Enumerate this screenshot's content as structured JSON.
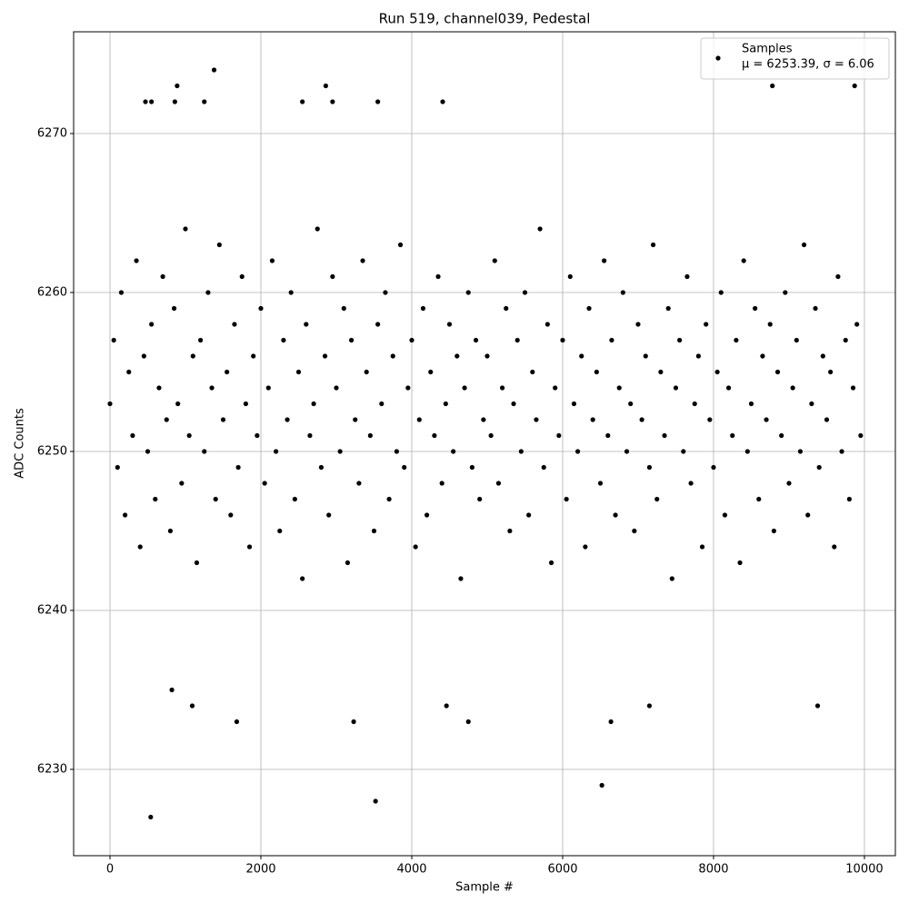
{
  "chart_data": {
    "type": "scatter",
    "title": "Run 519, channel039, Pedestal",
    "x_label": "Sample #",
    "y_label": "ADC Counts",
    "xlim": [
      -482,
      10410
    ],
    "ylim": [
      6224.57,
      6276.4
    ],
    "xticks": [
      0,
      2000,
      4000,
      6000,
      8000,
      10000
    ],
    "yticks": [
      6230,
      6240,
      6250,
      6260,
      6270
    ],
    "grid": true,
    "legend": "upper right",
    "legend_note": "μ = 6253.39, σ = 6.06",
    "series": [
      {
        "name": "Samples",
        "color": "#000000",
        "x": [
          0,
          50,
          100,
          150,
          200,
          250,
          300,
          350,
          400,
          450,
          500,
          550,
          600,
          650,
          700,
          750,
          800,
          850,
          900,
          950,
          1000,
          1050,
          1100,
          1150,
          1200,
          1250,
          1300,
          1350,
          1400,
          1450,
          1500,
          1550,
          1600,
          1650,
          1700,
          1750,
          1800,
          1850,
          1900,
          1950,
          2000,
          2050,
          2100,
          2150,
          2200,
          2250,
          2300,
          2350,
          2400,
          2450,
          2500,
          2550,
          2600,
          2650,
          2700,
          2750,
          2800,
          2850,
          2900,
          2950,
          3000,
          3050,
          3100,
          3150,
          3200,
          3250,
          3300,
          3350,
          3400,
          3450,
          3500,
          3550,
          3600,
          3650,
          3700,
          3750,
          3800,
          3850,
          3900,
          3950,
          4000,
          4050,
          4100,
          4150,
          4200,
          4250,
          4300,
          4350,
          4400,
          4450,
          4500,
          4550,
          4600,
          4650,
          4700,
          4750,
          4800,
          4850,
          4900,
          4950,
          5000,
          5050,
          5100,
          5150,
          5200,
          5250,
          5300,
          5350,
          5400,
          5450,
          5500,
          5550,
          5600,
          5650,
          5700,
          5750,
          5800,
          5850,
          5900,
          5950,
          6000,
          6050,
          6100,
          6150,
          6200,
          6250,
          6300,
          6350,
          6400,
          6450,
          6500,
          6550,
          6600,
          6650,
          6700,
          6750,
          6800,
          6850,
          6900,
          6950,
          7000,
          7050,
          7100,
          7150,
          7200,
          7250,
          7300,
          7350,
          7400,
          7450,
          7500,
          7550,
          7600,
          7650,
          7700,
          7750,
          7800,
          7850,
          7900,
          7950,
          8000,
          8050,
          8100,
          8150,
          8200,
          8250,
          8300,
          8350,
          8400,
          8450,
          8500,
          8550,
          8600,
          8650,
          8700,
          8750,
          8800,
          8850,
          8900,
          8950,
          9000,
          9050,
          9100,
          9150,
          9200,
          9250,
          9300,
          9350,
          9400,
          9450,
          9500,
          9550,
          9600,
          9650,
          9700,
          9750,
          9800,
          9850,
          9900,
          9950,
          540,
          3520,
          6520,
          1380,
          890,
          2860,
          8780,
          9870,
          470,
          550,
          860,
          1250,
          2550,
          2950,
          3550,
          4410,
          1680,
          3230,
          4750,
          6640,
          820,
          1090,
          4460,
          9380,
          7150
        ],
        "values": [
          6253,
          6257,
          6249,
          6260,
          6246,
          6255,
          6251,
          6262,
          6244,
          6256,
          6250,
          6258,
          6247,
          6254,
          6261,
          6252,
          6245,
          6259,
          6253,
          6248,
          6264,
          6251,
          6256,
          6243,
          6257,
          6250,
          6260,
          6254,
          6247,
          6263,
          6252,
          6255,
          6246,
          6258,
          6249,
          6261,
          6253,
          6244,
          6256,
          6251,
          6259,
          6248,
          6254,
          6262,
          6250,
          6245,
          6257,
          6252,
          6260,
          6247,
          6255,
          6242,
          6258,
          6251,
          6253,
          6264,
          6249,
          6256,
          6246,
          6261,
          6254,
          6250,
          6259,
          6243,
          6257,
          6252,
          6248,
          6262,
          6255,
          6251,
          6245,
          6258,
          6253,
          6260,
          6247,
          6256,
          6250,
          6263,
          6249,
          6254,
          6257,
          6244,
          6252,
          6259,
          6246,
          6255,
          6251,
          6261,
          6248,
          6253,
          6258,
          6250,
          6256,
          6242,
          6254,
          6260,
          6249,
          6257,
          6247,
          6252,
          6256,
          6251,
          6262,
          6248,
          6254,
          6259,
          6245,
          6253,
          6257,
          6250,
          6260,
          6246,
          6255,
          6252,
          6264,
          6249,
          6258,
          6243,
          6254,
          6251,
          6257,
          6247,
          6261,
          6253,
          6250,
          6256,
          6244,
          6259,
          6252,
          6255,
          6248,
          6262,
          6251,
          6257,
          6246,
          6254,
          6260,
          6250,
          6253,
          6245,
          6258,
          6252,
          6256,
          6249,
          6263,
          6247,
          6255,
          6251,
          6259,
          6242,
          6254,
          6257,
          6250,
          6261,
          6248,
          6253,
          6256,
          6244,
          6258,
          6252,
          6249,
          6255,
          6260,
          6246,
          6254,
          6251,
          6257,
          6243,
          6262,
          6250,
          6253,
          6259,
          6247,
          6256,
          6252,
          6258,
          6245,
          6255,
          6251,
          6260,
          6248,
          6254,
          6257,
          6250,
          6263,
          6246,
          6253,
          6259,
          6249,
          6256,
          6252,
          6255,
          6244,
          6261,
          6250,
          6257,
          6247,
          6254,
          6258,
          6251,
          6227,
          6228,
          6229,
          6274,
          6273,
          6273,
          6273,
          6273,
          6272,
          6272,
          6272,
          6272,
          6272,
          6272,
          6272,
          6272,
          6233,
          6233,
          6233,
          6233,
          6235,
          6234,
          6234,
          6234,
          6234
        ]
      }
    ]
  }
}
